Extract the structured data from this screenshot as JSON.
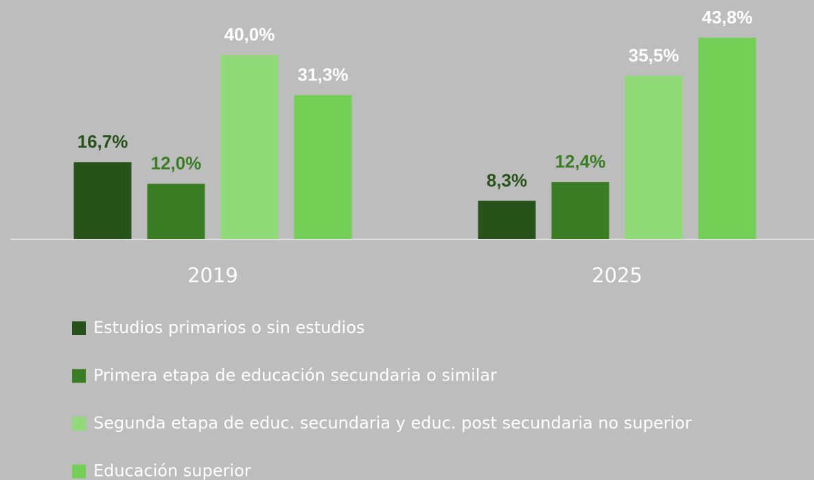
{
  "chart_data": {
    "type": "bar",
    "categories": [
      "2019",
      "2025"
    ],
    "series": [
      {
        "name": "Estudios primarios o sin estudios",
        "color": "#27531a",
        "label_color": "#27531a",
        "values": [
          16.7,
          8.3
        ],
        "value_labels": [
          "16,7%",
          "8,3%"
        ]
      },
      {
        "name": "Primera etapa de educación secundaria o similar",
        "color": "#3a7d24",
        "label_color": "#3a7d24",
        "values": [
          12.0,
          12.4
        ],
        "value_labels": [
          "12,0%",
          "12,4%"
        ]
      },
      {
        "name": "Segunda etapa de educ. secundaria y educ. post secundaria no superior",
        "color": "#90da77",
        "label_color": "#ffffff",
        "values": [
          40.0,
          35.5
        ],
        "value_labels": [
          "40,0%",
          "35,5%"
        ]
      },
      {
        "name": "Educación superior",
        "color": "#74cf57",
        "label_color": "#ffffff",
        "values": [
          31.3,
          43.8
        ],
        "value_labels": [
          "31,3%",
          "43,8%"
        ]
      }
    ],
    "ylim": [
      0,
      52
    ]
  }
}
